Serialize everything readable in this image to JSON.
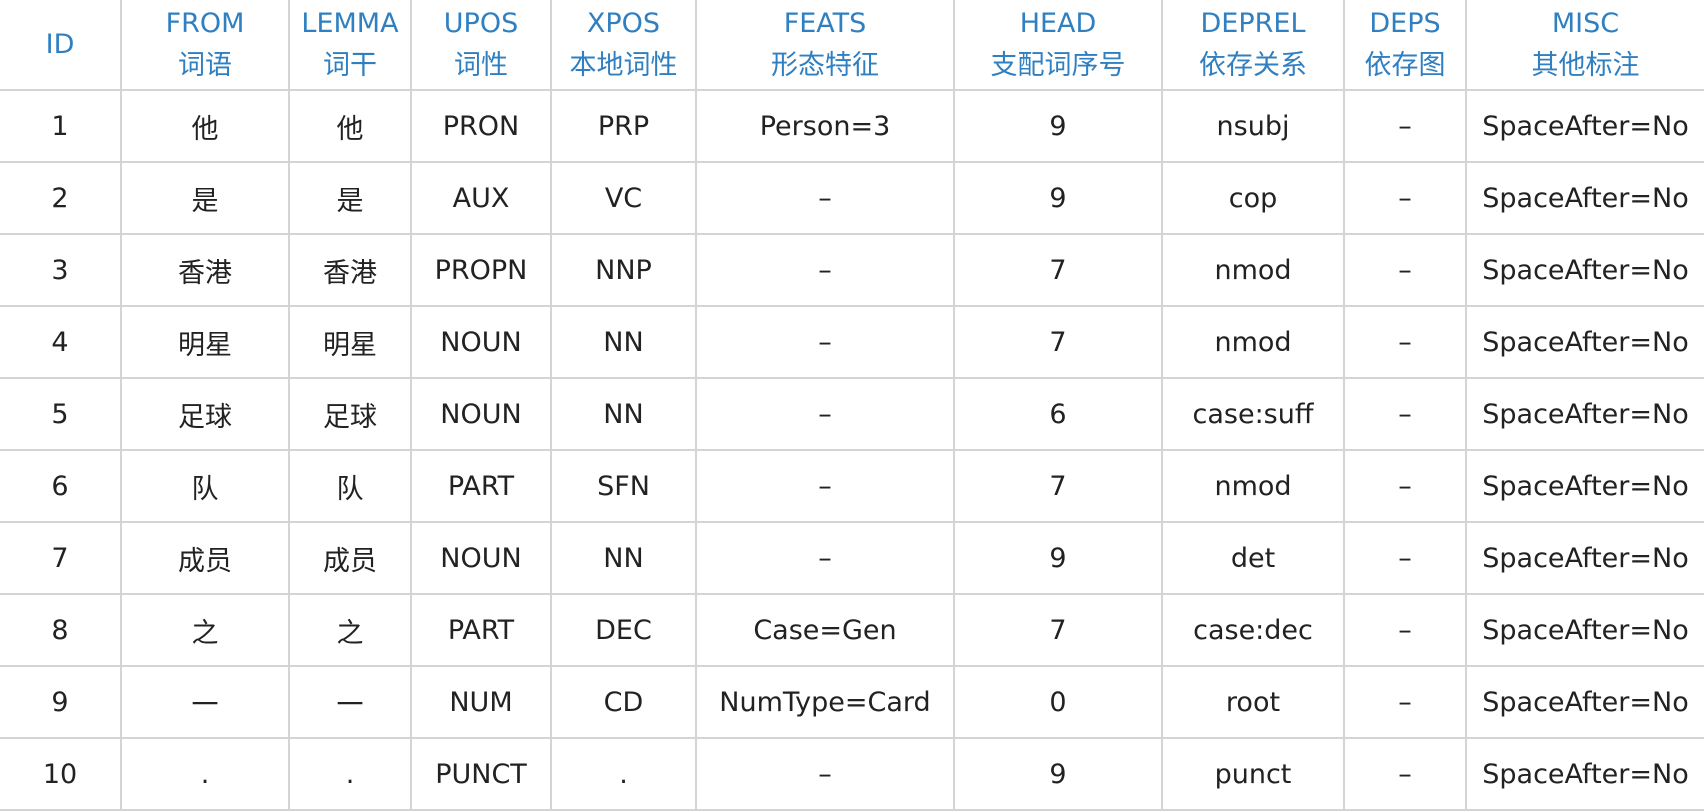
{
  "table": {
    "columns": [
      {
        "en": "ID",
        "zh": ""
      },
      {
        "en": "FROM",
        "zh": "词语"
      },
      {
        "en": "LEMMA",
        "zh": "词干"
      },
      {
        "en": "UPOS",
        "zh": "词性"
      },
      {
        "en": "XPOS",
        "zh": "本地词性"
      },
      {
        "en": "FEATS",
        "zh": "形态特征"
      },
      {
        "en": "HEAD",
        "zh": "支配词序号"
      },
      {
        "en": "DEPREL",
        "zh": "依存关系"
      },
      {
        "en": "DEPS",
        "zh": "依存图"
      },
      {
        "en": "MISC",
        "zh": "其他标注"
      }
    ],
    "rows": [
      [
        "1",
        "他",
        "他",
        "PRON",
        "PRP",
        "Person=3",
        "9",
        "nsubj",
        "–",
        "SpaceAfter=No"
      ],
      [
        "2",
        "是",
        "是",
        "AUX",
        "VC",
        "–",
        "9",
        "cop",
        "–",
        "SpaceAfter=No"
      ],
      [
        "3",
        "香港",
        "香港",
        "PROPN",
        "NNP",
        "–",
        "7",
        "nmod",
        "–",
        "SpaceAfter=No"
      ],
      [
        "4",
        "明星",
        "明星",
        "NOUN",
        "NN",
        "–",
        "7",
        "nmod",
        "–",
        "SpaceAfter=No"
      ],
      [
        "5",
        "足球",
        "足球",
        "NOUN",
        "NN",
        "–",
        "6",
        "case:suff",
        "–",
        "SpaceAfter=No"
      ],
      [
        "6",
        "队",
        "队",
        "PART",
        "SFN",
        "–",
        "7",
        "nmod",
        "–",
        "SpaceAfter=No"
      ],
      [
        "7",
        "成员",
        "成员",
        "NOUN",
        "NN",
        "–",
        "9",
        "det",
        "–",
        "SpaceAfter=No"
      ],
      [
        "8",
        "之",
        "之",
        "PART",
        "DEC",
        "Case=Gen",
        "7",
        "case:dec",
        "–",
        "SpaceAfter=No"
      ],
      [
        "9",
        "一",
        "一",
        "NUM",
        "CD",
        "NumType=Card",
        "0",
        "root",
        "–",
        "SpaceAfter=No"
      ],
      [
        "10",
        ".",
        ".",
        "PUNCT",
        ".",
        "–",
        "9",
        "punct",
        "–",
        "SpaceAfter=No"
      ]
    ]
  }
}
